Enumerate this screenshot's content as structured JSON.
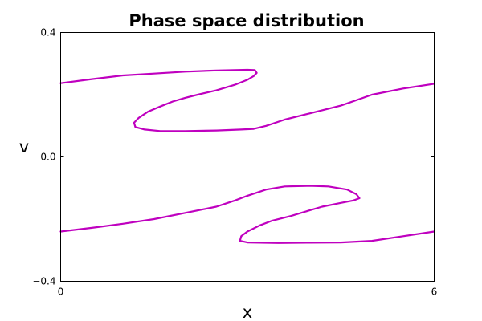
{
  "chart_data": {
    "type": "scatter",
    "title": "Phase space distribution",
    "xlabel": "x",
    "ylabel": "v",
    "xlim": [
      0,
      6
    ],
    "ylim": [
      -0.4,
      0.4
    ],
    "xticks": [
      0,
      6
    ],
    "xtick_labels": [
      "0",
      "6"
    ],
    "yticks": [
      0.4,
      0.0,
      -0.4
    ],
    "ytick_labels": [
      "0.4",
      "0.0",
      "−0.4"
    ],
    "grid": false,
    "color": "#bf00bf",
    "series": [
      {
        "x": [
          0.0,
          0.5,
          1.0,
          1.5,
          2.0,
          2.5,
          3.0,
          3.12,
          3.15,
          3.1,
          3.0,
          2.8,
          2.5,
          2.2,
          2.0,
          1.8,
          1.6,
          1.4,
          1.25,
          1.18,
          1.2,
          1.35,
          1.6,
          2.0,
          2.5,
          2.9,
          3.1,
          3.3,
          3.6,
          4.0,
          4.5,
          5.0,
          5.5,
          6.0
        ],
        "y": [
          0.237,
          0.25,
          0.262,
          0.268,
          0.274,
          0.278,
          0.28,
          0.279,
          0.27,
          0.26,
          0.248,
          0.232,
          0.214,
          0.2,
          0.19,
          0.178,
          0.162,
          0.145,
          0.125,
          0.11,
          0.096,
          0.088,
          0.083,
          0.083,
          0.085,
          0.088,
          0.09,
          0.1,
          0.12,
          0.14,
          0.165,
          0.2,
          0.22,
          0.235
        ]
      },
      {
        "x": [
          0.0,
          0.5,
          1.0,
          1.5,
          2.0,
          2.5,
          2.8,
          3.0,
          3.3,
          3.6,
          4.0,
          4.3,
          4.6,
          4.75,
          4.8,
          4.7,
          4.5,
          4.2,
          4.0,
          3.7,
          3.4,
          3.2,
          3.0,
          2.9,
          2.88,
          3.0,
          3.5,
          4.0,
          4.5,
          5.0,
          5.5,
          6.0
        ],
        "y": [
          -0.24,
          -0.228,
          -0.215,
          -0.2,
          -0.18,
          -0.16,
          -0.14,
          -0.125,
          -0.105,
          -0.095,
          -0.093,
          -0.095,
          -0.105,
          -0.12,
          -0.133,
          -0.14,
          -0.148,
          -0.16,
          -0.172,
          -0.19,
          -0.205,
          -0.22,
          -0.24,
          -0.255,
          -0.27,
          -0.275,
          -0.277,
          -0.276,
          -0.275,
          -0.27,
          -0.255,
          -0.24
        ]
      }
    ]
  }
}
